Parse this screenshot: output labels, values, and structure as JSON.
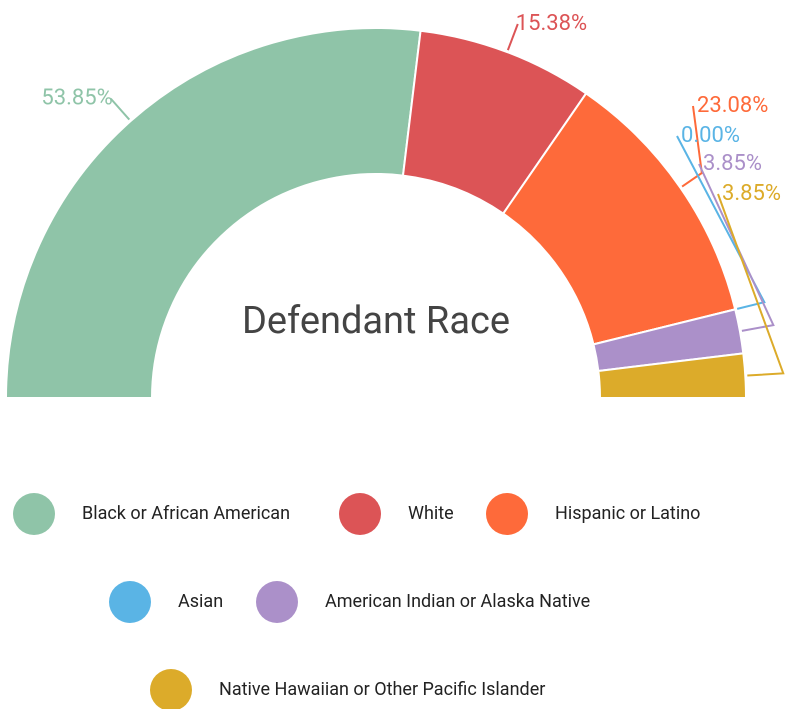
{
  "chart_data": {
    "type": "pie",
    "half": true,
    "donut": true,
    "title": "Defendant Race",
    "categories": [
      "Black or African American",
      "White",
      "Hispanic or Latino",
      "Asian",
      "American Indian or Alaska Native",
      "Native Hawaiian or Other Pacific Islander"
    ],
    "values": [
      53.85,
      15.38,
      23.08,
      0.0,
      3.85,
      3.85
    ],
    "value_labels": [
      "53.85%",
      "15.38%",
      "23.08%",
      "0.00%",
      "3.85%",
      "3.85%"
    ],
    "colors": [
      "#8fc4a8",
      "#dc5456",
      "#fe6a3a",
      "#5ab4e5",
      "#ab90c9",
      "#dcab2a"
    ],
    "legend": "bottom"
  }
}
